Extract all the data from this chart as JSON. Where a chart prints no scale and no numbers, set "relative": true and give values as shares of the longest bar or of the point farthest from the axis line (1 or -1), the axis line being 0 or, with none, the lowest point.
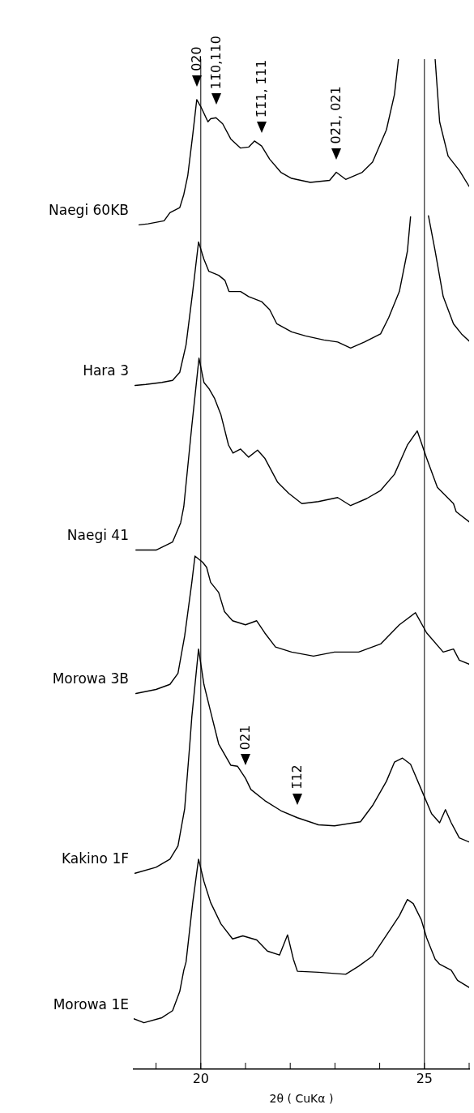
{
  "chart_data": {
    "type": "line",
    "relative": true,
    "xlabel": "2θ ( CuKα )",
    "xlim": [
      18.5,
      26
    ],
    "xticks": [
      {
        "value": 19,
        "label": null
      },
      20,
      {
        "value": 21,
        "label": null
      },
      {
        "value": 22,
        "label": null
      },
      {
        "value": 23,
        "label": null
      },
      {
        "value": 24,
        "label": null
      },
      25,
      {
        "value": 26,
        "label": null
      }
    ],
    "legend": false,
    "grid": false,
    "marker": "none",
    "line_style": "solid",
    "ref_lines": [
      {
        "axis": "x",
        "value": 20,
        "color": "#000000"
      },
      {
        "axis": "x",
        "value": 25,
        "color": "#000000"
      }
    ],
    "annotations": [
      {
        "text": "020",
        "x": 19.91,
        "y": 0.96
      },
      {
        "text": "11̄0,110",
        "x": 20.34,
        "y": 0.942
      },
      {
        "text": "1̄1̄1, 1̄11",
        "x": 21.36,
        "y": 0.914
      },
      {
        "text": "02̄1, 021",
        "x": 23.03,
        "y": 0.888
      },
      {
        "text": "021",
        "x": 21.0,
        "y": 0.288
      },
      {
        "text": "1̄12",
        "x": 22.16,
        "y": 0.249
      }
    ],
    "series": [
      {
        "name": "Naegi 60KB",
        "color": "#000000",
        "x": [
          18.62,
          18.82,
          19.18,
          19.31,
          19.53,
          19.62,
          19.71,
          19.82,
          19.91,
          20.0,
          20.16,
          20.22,
          20.34,
          20.49,
          20.67,
          20.89,
          21.07,
          21.2,
          21.36,
          21.54,
          21.79,
          22.03,
          22.45,
          22.88,
          23.03,
          23.24,
          23.61,
          23.84,
          24.15,
          24.33,
          24.42,
          24.8,
          25.24,
          25.34,
          25.53,
          25.78,
          26.0
        ],
        "values": [
          0.836,
          0.837,
          0.84,
          0.848,
          0.853,
          0.866,
          0.885,
          0.925,
          0.96,
          0.953,
          0.938,
          0.941,
          0.942,
          0.936,
          0.921,
          0.912,
          0.913,
          0.919,
          0.914,
          0.901,
          0.888,
          0.882,
          0.878,
          0.88,
          0.888,
          0.881,
          0.888,
          0.898,
          0.93,
          0.965,
          1,
          null,
          1,
          0.938,
          0.904,
          0.89,
          0.874
        ]
      },
      {
        "name": "Hara 3",
        "color": "#000000",
        "x": [
          18.53,
          18.77,
          19.13,
          19.37,
          19.53,
          19.67,
          19.82,
          19.95,
          20.07,
          20.18,
          20.4,
          20.54,
          20.63,
          20.89,
          21.07,
          21.36,
          21.54,
          21.7,
          22.03,
          22.34,
          22.75,
          23.06,
          23.35,
          23.66,
          24.02,
          24.2,
          24.44,
          24.62,
          24.69,
          24.9,
          25.09,
          25.24,
          25.42,
          25.65,
          25.83,
          26.0
        ],
        "values": [
          0.677,
          0.678,
          0.68,
          0.682,
          0.69,
          0.717,
          0.77,
          0.819,
          0.802,
          0.79,
          0.786,
          0.781,
          0.77,
          0.77,
          0.765,
          0.76,
          0.752,
          0.738,
          0.73,
          0.726,
          0.722,
          0.72,
          0.714,
          0.72,
          0.728,
          0.744,
          0.77,
          0.81,
          0.844,
          null,
          0.845,
          0.81,
          0.765,
          0.738,
          0.728,
          0.721
        ]
      },
      {
        "name": "Naegi 41",
        "color": "#000000",
        "x": [
          18.55,
          19.0,
          19.37,
          19.55,
          19.62,
          19.8,
          19.96,
          20.07,
          20.18,
          20.31,
          20.45,
          20.62,
          20.72,
          20.89,
          21.07,
          21.27,
          21.43,
          21.72,
          21.97,
          22.26,
          22.63,
          23.06,
          23.35,
          23.71,
          24.02,
          24.33,
          24.62,
          24.84,
          25.05,
          25.29,
          25.65,
          25.71,
          26.0
        ],
        "values": [
          0.514,
          0.514,
          0.522,
          0.541,
          0.557,
          0.637,
          0.704,
          0.68,
          0.674,
          0.664,
          0.648,
          0.618,
          0.61,
          0.614,
          0.606,
          0.613,
          0.605,
          0.581,
          0.57,
          0.56,
          0.562,
          0.566,
          0.558,
          0.565,
          0.573,
          0.589,
          0.618,
          0.632,
          0.605,
          0.576,
          0.56,
          0.552,
          0.542
        ]
      },
      {
        "name": "Morowa 3B",
        "color": "#000000",
        "x": [
          18.55,
          19.0,
          19.31,
          19.49,
          19.64,
          19.8,
          19.87,
          20.04,
          20.13,
          20.22,
          20.4,
          20.53,
          20.71,
          21.0,
          21.25,
          21.43,
          21.67,
          22.03,
          22.52,
          22.99,
          23.53,
          24.02,
          24.44,
          24.8,
          25.05,
          25.42,
          25.65,
          25.78,
          26.0
        ],
        "values": [
          0.372,
          0.376,
          0.381,
          0.392,
          0.429,
          0.482,
          0.508,
          0.502,
          0.497,
          0.482,
          0.472,
          0.453,
          0.444,
          0.44,
          0.444,
          0.432,
          0.418,
          0.413,
          0.409,
          0.413,
          0.413,
          0.421,
          0.44,
          0.452,
          0.432,
          0.413,
          0.416,
          0.405,
          0.401
        ]
      },
      {
        "name": "Kakino 1F",
        "color": "#000000",
        "x": [
          18.53,
          19.0,
          19.31,
          19.49,
          19.64,
          19.76,
          19.8,
          19.95,
          20.07,
          20.22,
          20.4,
          20.67,
          20.82,
          21.0,
          21.12,
          21.43,
          21.79,
          22.16,
          22.63,
          22.99,
          23.57,
          23.84,
          24.15,
          24.33,
          24.51,
          24.69,
          24.93,
          25.16,
          25.34,
          25.47,
          25.6,
          25.78,
          26.0
        ],
        "values": [
          0.194,
          0.2,
          0.208,
          0.221,
          0.258,
          0.325,
          0.349,
          0.416,
          0.381,
          0.354,
          0.322,
          0.301,
          0.3,
          0.288,
          0.277,
          0.266,
          0.256,
          0.249,
          0.242,
          0.241,
          0.245,
          0.261,
          0.285,
          0.304,
          0.308,
          0.302,
          0.277,
          0.253,
          0.244,
          0.257,
          0.244,
          0.229,
          0.225
        ]
      },
      {
        "name": "Morowa 1E",
        "color": "#000000",
        "x": [
          18.5,
          18.73,
          19.13,
          19.37,
          19.53,
          19.62,
          19.67,
          19.82,
          19.95,
          20.07,
          20.22,
          20.45,
          20.71,
          20.94,
          21.25,
          21.49,
          21.76,
          21.94,
          22.07,
          22.16,
          22.63,
          23.24,
          23.53,
          23.84,
          24.2,
          24.44,
          24.62,
          24.75,
          24.93,
          25.05,
          25.24,
          25.34,
          25.6,
          25.74,
          26.0
        ],
        "values": [
          0.05,
          0.046,
          0.051,
          0.058,
          0.077,
          0.098,
          0.106,
          0.165,
          0.208,
          0.186,
          0.165,
          0.144,
          0.129,
          0.132,
          0.128,
          0.117,
          0.113,
          0.133,
          0.109,
          0.097,
          0.096,
          0.094,
          0.102,
          0.112,
          0.136,
          0.152,
          0.168,
          0.164,
          0.148,
          0.13,
          0.109,
          0.104,
          0.098,
          0.088,
          0.081
        ]
      }
    ]
  }
}
